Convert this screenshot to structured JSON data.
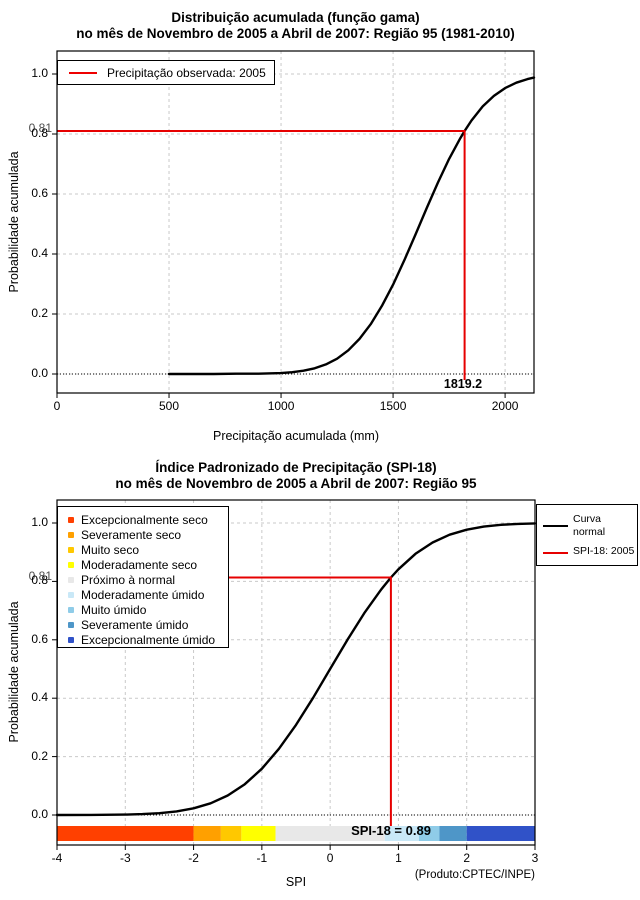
{
  "colors": {
    "red": "#E60000",
    "black": "#000000",
    "grid": "#C9C9C9"
  },
  "chart1": {
    "title": "Distribuição acumulada (função gama)",
    "subtitle": "no mês de Novembro de 2005 a Abril de 2007: Região 95 (1981-2010)",
    "xlabel": "Precipitação acumulada (mm)",
    "ylabel": "Probabilidade acumulada",
    "legend_label": "Precipitação observada: 2005",
    "prob_annotation": "0.81",
    "value_annotation": "1819.2"
  },
  "chart2": {
    "title": "Índice Padronizado de Precipitação (SPI-18)",
    "subtitle": "no mês de Novembro de 2005 a Abril de 2007: Região 95",
    "xlabel": "SPI",
    "ylabel": "Probabilidade acumulada",
    "credit": "(Produto:CPTEC/INPE)",
    "prob_annotation": "0.81",
    "bar_annotation": "SPI-18 = 0.89",
    "legend_right": [
      {
        "lines": [
          "Curva",
          "normal"
        ],
        "color": "#000000"
      },
      {
        "lines": [
          "SPI-18: 2005"
        ],
        "color": "#E60000"
      }
    ],
    "categories": [
      {
        "label": "Excepcionalmente seco",
        "color": "#FF4000"
      },
      {
        "label": "Severamente seco",
        "color": "#FFA000"
      },
      {
        "label": "Muito seco",
        "color": "#FFC800"
      },
      {
        "label": "Moderadamente seco",
        "color": "#FFFF00"
      },
      {
        "label": "Próximo à normal",
        "color": "#E8E8E8"
      },
      {
        "label": "Moderadamente úmido",
        "color": "#C9E8F7"
      },
      {
        "label": "Muito úmido",
        "color": "#8FCCE8"
      },
      {
        "label": "Severamente úmido",
        "color": "#4E96C8"
      },
      {
        "label": "Excepcionalmente úmido",
        "color": "#3052C8"
      }
    ]
  },
  "chart_data": [
    {
      "type": "line",
      "title": "Distribuição acumulada (função gama)",
      "subtitle": "no mês de Novembro de 2005 a Abril de 2007: Região 95 (1981-2010)",
      "xlabel": "Precipitação acumulada (mm)",
      "ylabel": "Probabilidade acumulada",
      "xlim": [
        0,
        2129
      ],
      "ylim": [
        0,
        1
      ],
      "grid": true,
      "legend_position": "top-left",
      "x_ticks": [
        0,
        500,
        1000,
        1500,
        2000
      ],
      "x_tick_labels": [
        "0",
        "500",
        "1000",
        "1500",
        "2000"
      ],
      "y_ticks": [
        0.0,
        0.2,
        0.4,
        0.6,
        0.8,
        1.0
      ],
      "y_tick_labels": [
        "0.0",
        "0.2",
        "0.4",
        "0.6",
        "0.8",
        "1.0"
      ],
      "series": [
        {
          "name": "Distribuição gama acumulada",
          "color": "#000000",
          "x": [
            500,
            700,
            800,
            900,
            1000,
            1050,
            1100,
            1150,
            1200,
            1250,
            1300,
            1350,
            1400,
            1450,
            1500,
            1550,
            1600,
            1650,
            1700,
            1750,
            1800,
            1819.2,
            1850,
            1900,
            1950,
            2000,
            2050,
            2100,
            2129
          ],
          "y": [
            0,
            0,
            0.001,
            0.001,
            0.003,
            0.006,
            0.011,
            0.019,
            0.032,
            0.051,
            0.079,
            0.117,
            0.166,
            0.227,
            0.298,
            0.379,
            0.465,
            0.553,
            0.638,
            0.717,
            0.786,
            0.81,
            0.845,
            0.892,
            0.927,
            0.953,
            0.971,
            0.983,
            0.988
          ]
        }
      ],
      "observed_marker": {
        "name": "Precipitação observada: 2005",
        "color": "#E60000",
        "x": 1819.2,
        "p": 0.81
      }
    },
    {
      "type": "line",
      "title": "Índice Padronizado de Precipitação (SPI-18)",
      "subtitle": "no mês de Novembro de 2005 a Abril de 2007: Região 95",
      "xlabel": "SPI",
      "ylabel": "Probabilidade acumulada",
      "xlim": [
        -4,
        3
      ],
      "ylim": [
        0,
        1
      ],
      "grid": true,
      "legend_position": "top-right",
      "x_ticks": [
        -4,
        -3,
        -2,
        -1,
        0,
        1,
        2,
        3
      ],
      "x_tick_labels": [
        "-4",
        "-3",
        "-2",
        "-1",
        "0",
        "1",
        "2",
        "3"
      ],
      "y_ticks": [
        0.0,
        0.2,
        0.4,
        0.6,
        0.8,
        1.0
      ],
      "y_tick_labels": [
        "0.0",
        "0.2",
        "0.4",
        "0.6",
        "0.8",
        "1.0"
      ],
      "series": [
        {
          "name": "Curva normal",
          "color": "#000000",
          "x": [
            -4,
            -3.5,
            -3,
            -2.75,
            -2.5,
            -2.25,
            -2,
            -1.75,
            -1.5,
            -1.25,
            -1,
            -0.75,
            -0.5,
            -0.25,
            0,
            0.25,
            0.5,
            0.75,
            0.89,
            1,
            1.25,
            1.5,
            1.75,
            2,
            2.25,
            2.5,
            2.75,
            3
          ],
          "y": [
            0,
            0.0002,
            0.0013,
            0.003,
            0.0062,
            0.0122,
            0.0228,
            0.0401,
            0.0668,
            0.1056,
            0.1587,
            0.2266,
            0.3085,
            0.4013,
            0.5,
            0.5987,
            0.6915,
            0.7734,
            0.8133,
            0.8413,
            0.8944,
            0.9332,
            0.9599,
            0.9772,
            0.9878,
            0.9938,
            0.997,
            0.9987
          ]
        }
      ],
      "observed_marker": {
        "name": "SPI-18: 2005",
        "color": "#E60000",
        "x": 0.89,
        "p": 0.8133
      },
      "spi_bar": {
        "label": "SPI-18 = 0.89",
        "thresholds": [
          -4,
          -2,
          -1.6,
          -1.3,
          -0.8,
          0.8,
          1.3,
          1.6,
          2,
          3
        ],
        "colors": [
          "#FF4000",
          "#FFA000",
          "#FFC800",
          "#FFFF00",
          "#E8E8E8",
          "#C9E8F7",
          "#8FCCE8",
          "#4E96C8",
          "#3052C8"
        ]
      }
    }
  ]
}
